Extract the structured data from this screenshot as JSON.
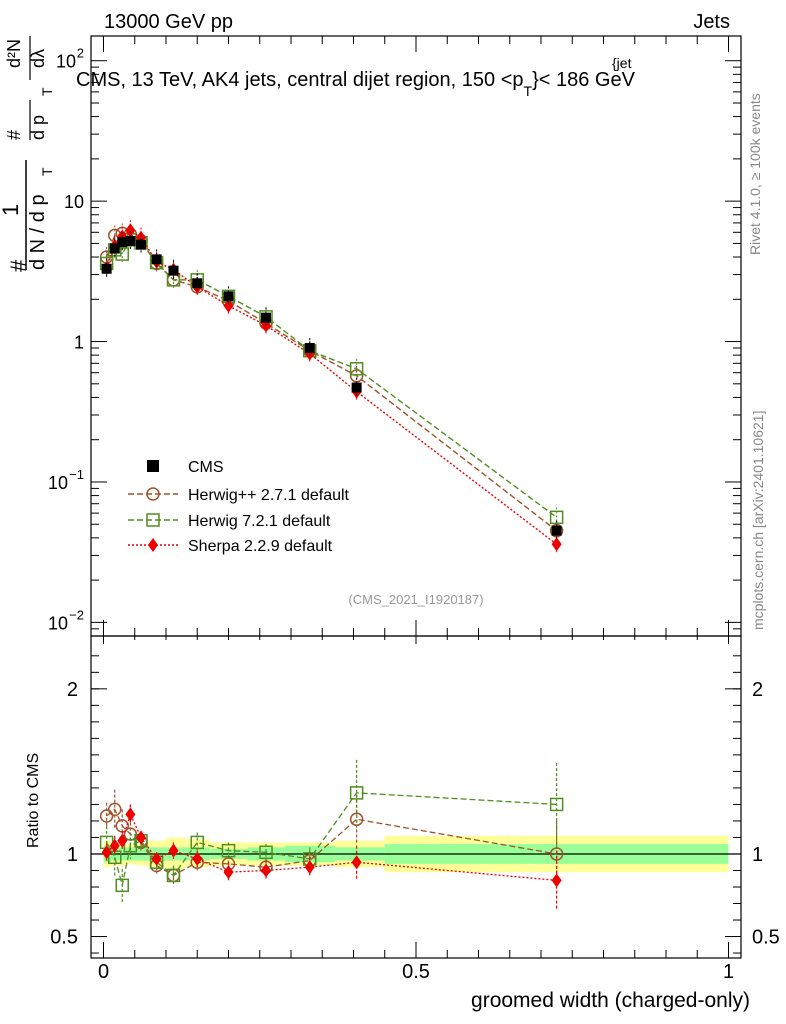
{
  "header": {
    "left": "13000 GeV pp",
    "right": "Jets",
    "title_prefix": "CMS, 13 TeV, AK4 jets, central dijet region, 150 <p",
    "title_sub": "T",
    "title_sup": "{jet",
    "title_suffix": "}< 186 GeV"
  },
  "side_labels": {
    "rivet": "Rivet 4.1.0, ≥ 100k events",
    "mcplots": "mcplots.cern.ch [arXiv:2401.10621]"
  },
  "watermark": "(CMS_2021_I1920187)",
  "y_axis_label": {
    "hash1": "#",
    "one": "1",
    "dN": "d N / d p",
    "sub": "T",
    "hash2": "#",
    "dp": "d p",
    "d2N": "d²N",
    "dlambda": "dλ"
  },
  "ratio_ylabel": "Ratio to CMS",
  "xlabel": "groomed width (charged-only)",
  "chart_data": [
    {
      "type": "line",
      "panel": "main",
      "yscale": "log",
      "xlim": [
        -0.02,
        1.02
      ],
      "ylim": [
        0.008,
        150
      ],
      "x_ticks": [
        0,
        0.5,
        1
      ],
      "y_ticks": [
        {
          "value": 0.01,
          "base": "10",
          "exp": "−2"
        },
        {
          "value": 0.1,
          "base": "10",
          "exp": "−1"
        },
        {
          "value": 1,
          "base": "1",
          "exp": ""
        },
        {
          "value": 10,
          "base": "10",
          "exp": ""
        },
        {
          "value": 100,
          "base": "10",
          "exp": "2"
        }
      ],
      "legend_position": "lower-left",
      "series": [
        {
          "name": "CMS",
          "style": "data",
          "color": "#000000",
          "x": [
            0.005,
            0.018,
            0.03,
            0.043,
            0.06,
            0.085,
            0.112,
            0.15,
            0.2,
            0.26,
            0.33,
            0.405,
            0.725
          ],
          "y": [
            3.3,
            4.6,
            5.1,
            5.2,
            4.9,
            3.85,
            3.2,
            2.6,
            2.1,
            1.48,
            0.9,
            0.47,
            0.045
          ]
        },
        {
          "name": "Herwig++ 2.7.1 default",
          "style": "circle",
          "color": "#a0522d",
          "x": [
            0.005,
            0.018,
            0.03,
            0.043,
            0.06,
            0.085,
            0.112,
            0.15,
            0.2,
            0.26,
            0.33,
            0.405,
            0.725
          ],
          "y": [
            4.0,
            5.7,
            5.9,
            5.8,
            5.2,
            3.6,
            2.75,
            2.45,
            1.95,
            1.35,
            0.86,
            0.57,
            0.045
          ]
        },
        {
          "name": "Herwig 7.2.1 default",
          "style": "square",
          "color": "#4f8f1f",
          "x": [
            0.005,
            0.018,
            0.03,
            0.043,
            0.06,
            0.085,
            0.112,
            0.15,
            0.2,
            0.26,
            0.33,
            0.405,
            0.725
          ],
          "y": [
            3.6,
            4.5,
            4.2,
            5.3,
            5.05,
            3.65,
            2.75,
            2.75,
            2.1,
            1.5,
            0.86,
            0.64,
            0.056
          ]
        },
        {
          "name": "Sherpa 2.2.9 default",
          "style": "diamond",
          "color": "#ee0000",
          "x": [
            0.005,
            0.018,
            0.03,
            0.043,
            0.06,
            0.085,
            0.112,
            0.15,
            0.2,
            0.26,
            0.33,
            0.405,
            0.725
          ],
          "y": [
            3.35,
            4.8,
            5.6,
            6.2,
            5.5,
            3.7,
            3.25,
            2.45,
            1.8,
            1.3,
            0.82,
            0.44,
            0.036
          ]
        }
      ]
    },
    {
      "type": "line",
      "panel": "ratio",
      "xlim": [
        -0.02,
        1.02
      ],
      "ylim": [
        0.37,
        2.32
      ],
      "y_ticks": [
        0.5,
        1,
        2
      ],
      "y_tick_labels": [
        "0.5",
        "1",
        "2"
      ],
      "x_tick_labels": [
        "0",
        "0.5",
        "1"
      ],
      "bands": [
        {
          "x0": 0.0,
          "x1": 0.012,
          "y68": [
            0.95,
            1.05
          ],
          "y95": [
            0.92,
            1.08
          ]
        },
        {
          "x0": 0.012,
          "x1": 0.024,
          "y68": [
            0.96,
            1.04
          ],
          "y95": [
            0.93,
            1.07
          ]
        },
        {
          "x0": 0.024,
          "x1": 0.036,
          "y68": [
            0.96,
            1.04
          ],
          "y95": [
            0.93,
            1.06
          ]
        },
        {
          "x0": 0.036,
          "x1": 0.05,
          "y68": [
            0.96,
            1.04
          ],
          "y95": [
            0.94,
            1.06
          ]
        },
        {
          "x0": 0.05,
          "x1": 0.07,
          "y68": [
            0.96,
            1.04
          ],
          "y95": [
            0.93,
            1.06
          ]
        },
        {
          "x0": 0.07,
          "x1": 0.1,
          "y68": [
            0.96,
            1.04
          ],
          "y95": [
            0.92,
            1.08
          ]
        },
        {
          "x0": 0.1,
          "x1": 0.13,
          "y68": [
            0.96,
            1.04
          ],
          "y95": [
            0.91,
            1.1
          ]
        },
        {
          "x0": 0.13,
          "x1": 0.17,
          "y68": [
            0.96,
            1.04
          ],
          "y95": [
            0.92,
            1.09
          ]
        },
        {
          "x0": 0.17,
          "x1": 0.23,
          "y68": [
            0.97,
            1.03
          ],
          "y95": [
            0.93,
            1.07
          ]
        },
        {
          "x0": 0.23,
          "x1": 0.29,
          "y68": [
            0.96,
            1.04
          ],
          "y95": [
            0.93,
            1.07
          ]
        },
        {
          "x0": 0.29,
          "x1": 0.37,
          "y68": [
            0.95,
            1.05
          ],
          "y95": [
            0.93,
            1.07
          ]
        },
        {
          "x0": 0.37,
          "x1": 0.45,
          "y68": [
            0.96,
            1.04
          ],
          "y95": [
            0.92,
            1.08
          ]
        },
        {
          "x0": 0.45,
          "x1": 1.0,
          "y68": [
            0.94,
            1.06
          ],
          "y95": [
            0.89,
            1.11
          ]
        }
      ],
      "series": [
        {
          "name": "Herwig++ 2.7.1 default",
          "style": "circle",
          "color": "#a0522d",
          "x": [
            0.005,
            0.018,
            0.03,
            0.043,
            0.06,
            0.085,
            0.112,
            0.15,
            0.2,
            0.26,
            0.33,
            0.405,
            0.725
          ],
          "y": [
            1.23,
            1.27,
            1.17,
            1.12,
            1.07,
            0.93,
            0.87,
            0.95,
            0.94,
            0.92,
            0.96,
            1.21,
            1.0
          ],
          "err": [
            0.08,
            0.12,
            0.1,
            0.07,
            0.05,
            0.05,
            0.05,
            0.05,
            0.05,
            0.05,
            0.06,
            0.15,
            0.2
          ]
        },
        {
          "name": "Herwig 7.2.1 default",
          "style": "square",
          "color": "#4f8f1f",
          "x": [
            0.005,
            0.018,
            0.03,
            0.043,
            0.06,
            0.085,
            0.112,
            0.15,
            0.2,
            0.26,
            0.33,
            0.405,
            0.725
          ],
          "y": [
            1.07,
            0.98,
            0.81,
            1.05,
            1.08,
            0.95,
            0.87,
            1.07,
            1.02,
            1.01,
            0.97,
            1.37,
            1.3
          ],
          "err": [
            0.1,
            0.12,
            0.1,
            0.08,
            0.05,
            0.05,
            0.06,
            0.06,
            0.05,
            0.05,
            0.07,
            0.2,
            0.25
          ]
        },
        {
          "name": "Sherpa 2.2.9 default",
          "style": "diamond",
          "color": "#ee0000",
          "x": [
            0.005,
            0.018,
            0.03,
            0.043,
            0.06,
            0.085,
            0.112,
            0.15,
            0.2,
            0.26,
            0.33,
            0.405,
            0.725
          ],
          "y": [
            1.01,
            1.05,
            1.08,
            1.24,
            1.1,
            0.97,
            1.02,
            0.97,
            0.89,
            0.9,
            0.92,
            0.95,
            0.84
          ],
          "err": [
            0.05,
            0.06,
            0.06,
            0.06,
            0.04,
            0.04,
            0.05,
            0.05,
            0.06,
            0.06,
            0.06,
            0.1,
            0.18
          ]
        }
      ]
    }
  ]
}
